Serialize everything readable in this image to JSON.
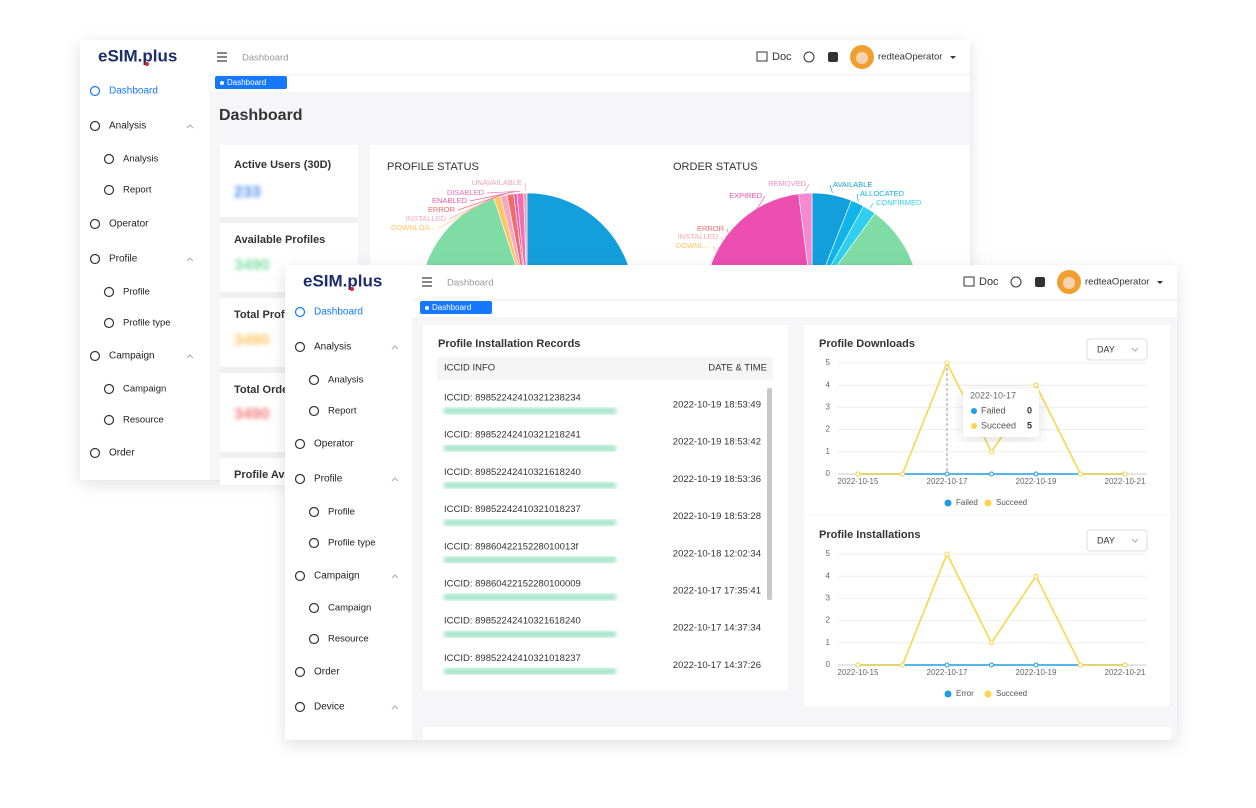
{
  "back": {
    "logo": "eSIM.plus",
    "breadcrumb": "Dashboard",
    "tab": "Dashboard",
    "doc": "Doc",
    "user": "redteaOperator",
    "page_title": "Dashboard",
    "sidebar": [
      "Dashboard",
      "Analysis",
      "Analysis",
      "Report",
      "Operator",
      "Profile",
      "Profile",
      "Profile type",
      "Campaign",
      "Campaign",
      "Resource",
      "Order"
    ],
    "stats": [
      {
        "title": "Active Users (30D)",
        "value": "233"
      },
      {
        "title": "Available Profiles",
        "value": "3490"
      },
      {
        "title": "Total Profi",
        "value": "3490"
      },
      {
        "title": "Total Orde",
        "value": "3490"
      },
      {
        "title": "Profile Ava"
      }
    ],
    "profile_status": {
      "type": "pie",
      "title": "PROFILE STATUS",
      "categories": [
        null,
        null,
        "DOWNLOA...",
        "INSTALLED",
        "ERROR",
        "ENABLED",
        "DISABLED",
        "UNAVAILABLE"
      ],
      "values": [
        51,
        44,
        1,
        1,
        1,
        0.5,
        1,
        0.5
      ],
      "colors": [
        "#139fdc",
        "#7fdca4",
        "#ffc560",
        "#f9a8c4",
        "#f06b6b",
        "#ec5fa8",
        "#f26fb4",
        "#f4a0b4"
      ]
    },
    "order_status": {
      "type": "pie",
      "title": "ORDER STATUS",
      "categories": [
        "AVAILABLE",
        "ALLOCATED",
        "CONFIRMED",
        null,
        "DOWNL...",
        "INSTALLED",
        "ERROR",
        "EXPIRED",
        "REMOVED"
      ],
      "values": [
        6,
        2,
        2,
        40,
        1,
        1,
        1,
        45,
        2
      ],
      "colors": [
        "#139fdc",
        "#10b4e8",
        "#2fd0ee",
        "#7fdca4",
        "#ffc560",
        "#f9a8a8",
        "#f06b6b",
        "#ec4fb0",
        "#f58ad0"
      ]
    }
  },
  "front": {
    "logo": "eSIM.plus",
    "breadcrumb": "Dashboard",
    "tab": "Dashboard",
    "doc": "Doc",
    "user": "redteaOperator",
    "sidebar": [
      "Dashboard",
      "Analysis",
      "Analysis",
      "Report",
      "Operator",
      "Profile",
      "Profile",
      "Profile type",
      "Campaign",
      "Campaign",
      "Resource",
      "Order",
      "Device"
    ],
    "records": {
      "title": "Profile Installation Records",
      "headers": [
        "ICCID INFO",
        "DATE & TIME"
      ],
      "rows": [
        [
          "ICCID: 89852242410321238234",
          "2022-10-19 18:53:49"
        ],
        [
          "ICCID: 89852242410321218241",
          "2022-10-19 18:53:42"
        ],
        [
          "ICCID: 89852242410321618240",
          "2022-10-19 18:53:36"
        ],
        [
          "ICCID: 89852242410321018237",
          "2022-10-19 18:53:28"
        ],
        [
          "ICCID: 8986042215228010013f",
          "2022-10-18 12:02:34"
        ],
        [
          "ICCID: 89860422152280100009",
          "2022-10-17 17:35:41"
        ],
        [
          "ICCID: 89852242410321618240",
          "2022-10-17 14:37:34"
        ],
        [
          "ICCID: 89852242410321018237",
          "2022-10-17 14:37:26"
        ]
      ]
    },
    "downloads": {
      "type": "line",
      "title": "Profile Downloads",
      "dropdown": "DAY",
      "categories": [
        "2022-10-15",
        null,
        "2022-10-17",
        null,
        "2022-10-19",
        null,
        "2022-10-21"
      ],
      "series": [
        {
          "name": "Failed",
          "color": "#1a9fe0",
          "values": [
            0,
            0,
            0,
            0,
            0,
            0,
            0
          ]
        },
        {
          "name": "Succeed",
          "color": "#fdd54a",
          "values": [
            0,
            0,
            5,
            1,
            4,
            0,
            0
          ]
        }
      ],
      "ylim": [
        0,
        5
      ],
      "yticks": [
        0,
        1,
        2,
        3,
        4,
        5
      ],
      "grid": true,
      "tooltip": {
        "index": 2
      }
    },
    "installations": {
      "type": "line",
      "title": "Profile Installations",
      "dropdown": "DAY",
      "categories": [
        "2022-10-15",
        null,
        "2022-10-17",
        null,
        "2022-10-19",
        null,
        "2022-10-21"
      ],
      "series": [
        {
          "name": "Error",
          "color": "#1a9fe0",
          "values": [
            0,
            0,
            0,
            0,
            0,
            0,
            0
          ]
        },
        {
          "name": "Succeed",
          "color": "#fdd54a",
          "values": [
            0,
            0,
            5,
            1,
            4,
            0,
            0
          ]
        }
      ],
      "ylim": [
        0,
        5
      ],
      "yticks": [
        0,
        1,
        2,
        3,
        4,
        5
      ],
      "grid": true
    }
  }
}
